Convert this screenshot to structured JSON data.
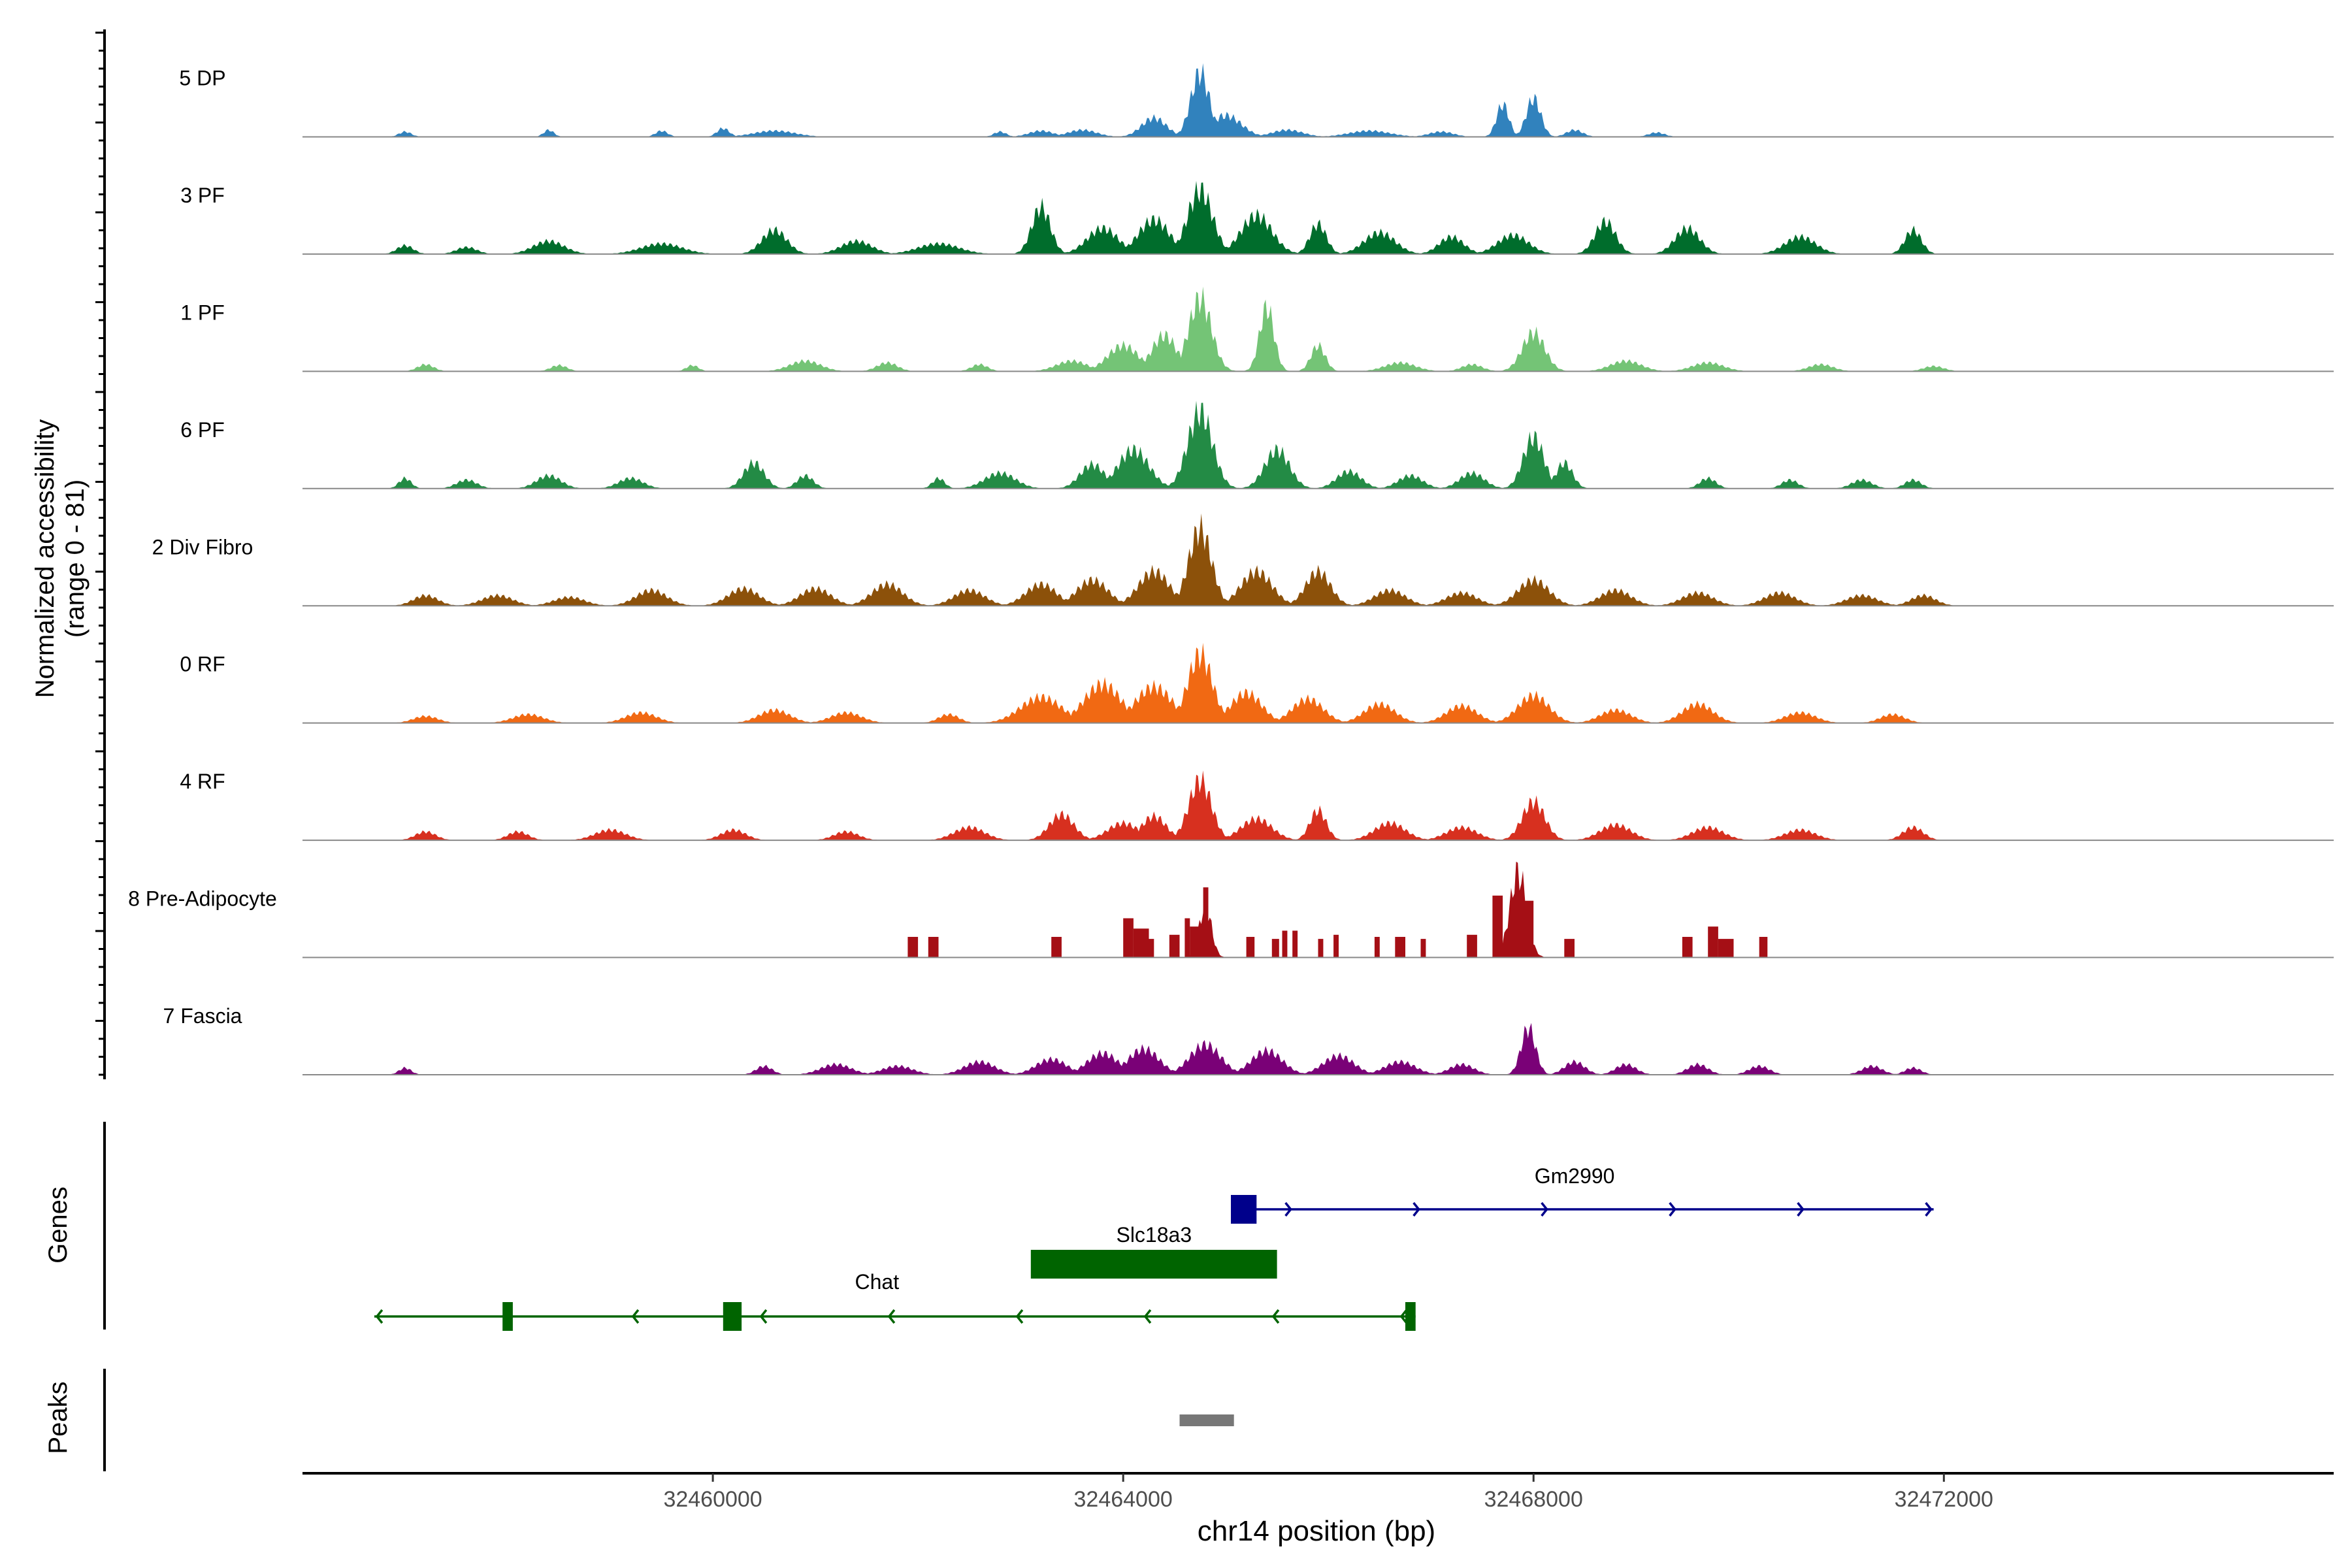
{
  "chart_data": {
    "type": "area",
    "xlabel": "chr14 position (bp)",
    "xlim": [
      32456000,
      32475800
    ],
    "x_ticks": [
      "32460000",
      "32464000",
      "32468000",
      "32472000"
    ],
    "x_tick_values": [
      32460000,
      32464000,
      32468000,
      32472000
    ],
    "coverage": {
      "ylabel_line1": "Normalized accessibility",
      "ylabel_line2": "(range 0 - 81)",
      "series": [
        {
          "name": "5 DP",
          "color": "#3182BD",
          "peaks": [
            [
              32457000,
              0.06,
              60
            ],
            [
              32458400,
              0.08,
              50
            ],
            [
              32459500,
              0.07,
              60
            ],
            [
              32460100,
              0.1,
              60
            ],
            [
              32460600,
              0.07,
              200
            ],
            [
              32462800,
              0.06,
              60
            ],
            [
              32463200,
              0.07,
              120
            ],
            [
              32463600,
              0.08,
              140
            ],
            [
              32464300,
              0.22,
              120
            ],
            [
              32464750,
              0.75,
              90
            ],
            [
              32465000,
              0.25,
              150
            ],
            [
              32465600,
              0.08,
              150
            ],
            [
              32466400,
              0.07,
              200
            ],
            [
              32467100,
              0.06,
              120
            ],
            [
              32467700,
              0.38,
              60
            ],
            [
              32468000,
              0.45,
              70
            ],
            [
              32468400,
              0.08,
              80
            ],
            [
              32469200,
              0.05,
              80
            ]
          ]
        },
        {
          "name": "3 PF",
          "color": "#006D2C",
          "peaks": [
            [
              32457000,
              0.1,
              80
            ],
            [
              32457600,
              0.08,
              100
            ],
            [
              32458400,
              0.15,
              150
            ],
            [
              32459500,
              0.12,
              200
            ],
            [
              32460600,
              0.28,
              120
            ],
            [
              32461400,
              0.15,
              150
            ],
            [
              32462200,
              0.12,
              200
            ],
            [
              32463200,
              0.55,
              90
            ],
            [
              32463800,
              0.3,
              150
            ],
            [
              32464300,
              0.4,
              150
            ],
            [
              32464750,
              0.75,
              120
            ],
            [
              32465300,
              0.45,
              150
            ],
            [
              32465900,
              0.35,
              80
            ],
            [
              32466500,
              0.25,
              150
            ],
            [
              32467200,
              0.2,
              120
            ],
            [
              32467800,
              0.22,
              150
            ],
            [
              32468700,
              0.38,
              100
            ],
            [
              32469500,
              0.3,
              120
            ],
            [
              32470600,
              0.2,
              150
            ],
            [
              32471700,
              0.28,
              80
            ]
          ]
        },
        {
          "name": "1 PF",
          "color": "#74C476",
          "peaks": [
            [
              32457200,
              0.08,
              80
            ],
            [
              32458500,
              0.07,
              80
            ],
            [
              32459800,
              0.07,
              60
            ],
            [
              32460900,
              0.12,
              150
            ],
            [
              32461700,
              0.1,
              100
            ],
            [
              32462600,
              0.08,
              80
            ],
            [
              32463500,
              0.12,
              150
            ],
            [
              32464000,
              0.3,
              150
            ],
            [
              32464400,
              0.42,
              120
            ],
            [
              32464750,
              0.85,
              110
            ],
            [
              32465400,
              0.75,
              70
            ],
            [
              32465900,
              0.3,
              70
            ],
            [
              32466700,
              0.1,
              150
            ],
            [
              32467400,
              0.08,
              100
            ],
            [
              32468000,
              0.45,
              110
            ],
            [
              32468900,
              0.12,
              150
            ],
            [
              32469700,
              0.1,
              150
            ],
            [
              32470800,
              0.08,
              120
            ],
            [
              32471900,
              0.06,
              100
            ]
          ]
        },
        {
          "name": "6 PF",
          "color": "#238B45",
          "peaks": [
            [
              32457000,
              0.12,
              60
            ],
            [
              32457600,
              0.1,
              100
            ],
            [
              32458400,
              0.15,
              120
            ],
            [
              32459200,
              0.12,
              120
            ],
            [
              32460400,
              0.3,
              100
            ],
            [
              32460900,
              0.15,
              80
            ],
            [
              32462200,
              0.12,
              60
            ],
            [
              32462800,
              0.18,
              150
            ],
            [
              32463700,
              0.28,
              120
            ],
            [
              32464100,
              0.45,
              150
            ],
            [
              32464750,
              0.9,
              120
            ],
            [
              32465500,
              0.45,
              120
            ],
            [
              32466200,
              0.2,
              120
            ],
            [
              32466800,
              0.15,
              120
            ],
            [
              32467400,
              0.18,
              120
            ],
            [
              32468000,
              0.6,
              100
            ],
            [
              32468300,
              0.3,
              80
            ],
            [
              32469700,
              0.12,
              80
            ],
            [
              32470500,
              0.1,
              80
            ],
            [
              32471200,
              0.1,
              100
            ],
            [
              32471700,
              0.1,
              80
            ]
          ]
        },
        {
          "name": "2 Div Fibro",
          "color": "#8C510A",
          "peaks": [
            [
              32457200,
              0.12,
              120
            ],
            [
              32457900,
              0.12,
              150
            ],
            [
              32458600,
              0.1,
              150
            ],
            [
              32459400,
              0.18,
              150
            ],
            [
              32460300,
              0.2,
              150
            ],
            [
              32461000,
              0.2,
              150
            ],
            [
              32461700,
              0.25,
              150
            ],
            [
              32462500,
              0.18,
              150
            ],
            [
              32463200,
              0.25,
              150
            ],
            [
              32463700,
              0.3,
              150
            ],
            [
              32464300,
              0.4,
              150
            ],
            [
              32464750,
              0.9,
              110
            ],
            [
              32465300,
              0.4,
              150
            ],
            [
              32465900,
              0.4,
              120
            ],
            [
              32466600,
              0.18,
              150
            ],
            [
              32467300,
              0.15,
              150
            ],
            [
              32468000,
              0.3,
              150
            ],
            [
              32468800,
              0.18,
              150
            ],
            [
              32469600,
              0.15,
              150
            ],
            [
              32470400,
              0.15,
              150
            ],
            [
              32471200,
              0.12,
              150
            ],
            [
              32471800,
              0.12,
              120
            ]
          ]
        },
        {
          "name": "0 RF",
          "color": "#F16913",
          "peaks": [
            [
              32457200,
              0.08,
              120
            ],
            [
              32458200,
              0.1,
              150
            ],
            [
              32459300,
              0.12,
              150
            ],
            [
              32460600,
              0.15,
              150
            ],
            [
              32461300,
              0.12,
              150
            ],
            [
              32462300,
              0.1,
              100
            ],
            [
              32463200,
              0.3,
              200
            ],
            [
              32463800,
              0.45,
              180
            ],
            [
              32464300,
              0.42,
              180
            ],
            [
              32464750,
              0.8,
              120
            ],
            [
              32465200,
              0.35,
              150
            ],
            [
              32465800,
              0.28,
              150
            ],
            [
              32466500,
              0.22,
              150
            ],
            [
              32467300,
              0.2,
              150
            ],
            [
              32468000,
              0.32,
              150
            ],
            [
              32468800,
              0.15,
              150
            ],
            [
              32469600,
              0.22,
              150
            ],
            [
              32470600,
              0.12,
              150
            ],
            [
              32471500,
              0.1,
              120
            ]
          ]
        },
        {
          "name": "4 RF",
          "color": "#D7301F",
          "peaks": [
            [
              32457200,
              0.1,
              100
            ],
            [
              32458100,
              0.1,
              100
            ],
            [
              32459000,
              0.12,
              150
            ],
            [
              32460200,
              0.12,
              120
            ],
            [
              32461300,
              0.1,
              120
            ],
            [
              32462500,
              0.15,
              150
            ],
            [
              32463400,
              0.3,
              120
            ],
            [
              32464000,
              0.2,
              150
            ],
            [
              32464300,
              0.28,
              120
            ],
            [
              32464750,
              0.7,
              110
            ],
            [
              32465300,
              0.25,
              150
            ],
            [
              32465900,
              0.35,
              80
            ],
            [
              32466600,
              0.2,
              150
            ],
            [
              32467300,
              0.15,
              150
            ],
            [
              32468000,
              0.45,
              110
            ],
            [
              32468800,
              0.18,
              150
            ],
            [
              32469700,
              0.15,
              150
            ],
            [
              32470600,
              0.12,
              150
            ],
            [
              32471700,
              0.15,
              100
            ]
          ]
        },
        {
          "name": "8 Pre-Adipocyte",
          "color": "#A50F15",
          "blocks": [
            [
              32461900,
              32462000,
              0.2
            ],
            [
              32462100,
              32462200,
              0.2
            ],
            [
              32463300,
              32463400,
              0.2
            ],
            [
              32464000,
              32464100,
              0.38
            ],
            [
              32464100,
              32464250,
              0.28
            ],
            [
              32464250,
              32464300,
              0.18
            ],
            [
              32464450,
              32464550,
              0.22
            ],
            [
              32464600,
              32464650,
              0.38
            ],
            [
              32464650,
              32464780,
              0.3
            ],
            [
              32464780,
              32464830,
              0.68
            ],
            [
              32465200,
              32465280,
              0.2
            ],
            [
              32465450,
              32465520,
              0.18
            ],
            [
              32465550,
              32465600,
              0.26
            ],
            [
              32465650,
              32465700,
              0.26
            ],
            [
              32465900,
              32465950,
              0.18
            ],
            [
              32466050,
              32466100,
              0.22
            ],
            [
              32466450,
              32466500,
              0.2
            ],
            [
              32466650,
              32466750,
              0.2
            ],
            [
              32466900,
              32466950,
              0.18
            ],
            [
              32467350,
              32467450,
              0.22
            ],
            [
              32467600,
              32467700,
              0.6
            ],
            [
              32467900,
              32468000,
              0.55
            ],
            [
              32468300,
              32468400,
              0.18
            ],
            [
              32469450,
              32469550,
              0.2
            ],
            [
              32469700,
              32469800,
              0.3
            ],
            [
              32469800,
              32469950,
              0.18
            ],
            [
              32470200,
              32470280,
              0.2
            ]
          ],
          "peaks": [
            [
              32464800,
              0.6,
              60
            ],
            [
              32467850,
              1.0,
              80
            ]
          ]
        },
        {
          "name": "7 Fascia",
          "color": "#7A0177",
          "peaks": [
            [
              32457000,
              0.08,
              60
            ],
            [
              32460500,
              0.1,
              80
            ],
            [
              32461200,
              0.12,
              150
            ],
            [
              32461800,
              0.1,
              150
            ],
            [
              32462600,
              0.15,
              150
            ],
            [
              32463300,
              0.18,
              150
            ],
            [
              32463800,
              0.25,
              150
            ],
            [
              32464200,
              0.3,
              150
            ],
            [
              32464800,
              0.35,
              150
            ],
            [
              32465400,
              0.28,
              150
            ],
            [
              32466100,
              0.22,
              150
            ],
            [
              32466700,
              0.15,
              150
            ],
            [
              32467300,
              0.12,
              120
            ],
            [
              32467950,
              0.55,
              70
            ],
            [
              32468400,
              0.15,
              100
            ],
            [
              32468900,
              0.12,
              100
            ],
            [
              32469600,
              0.12,
              100
            ],
            [
              32470200,
              0.1,
              100
            ],
            [
              32471300,
              0.1,
              100
            ],
            [
              32471700,
              0.08,
              80
            ]
          ]
        }
      ]
    },
    "genes": {
      "ylabel": "Genes",
      "items": [
        {
          "name": "Gm2990",
          "color": "#00008B",
          "strand": "+",
          "start": 32465050,
          "end": 32471900,
          "exons": [
            [
              32465050,
              32465300
            ]
          ],
          "row": 0
        },
        {
          "name": "Slc18a3",
          "color": "#006400",
          "strand": "+",
          "start": 32463100,
          "end": 32465500,
          "exons": [
            [
              32463100,
              32465500
            ]
          ],
          "row": 1
        },
        {
          "name": "Chat",
          "color": "#006400",
          "strand": "-",
          "start": 32456700,
          "end": 32466850,
          "exons": [
            [
              32457950,
              32458050
            ],
            [
              32460100,
              32460280
            ],
            [
              32466750,
              32466850
            ]
          ],
          "row": 2
        }
      ]
    },
    "peaks_track": {
      "ylabel": "Peaks",
      "color": "#777777",
      "ranges": [
        [
          32464550,
          32465080
        ]
      ]
    }
  }
}
